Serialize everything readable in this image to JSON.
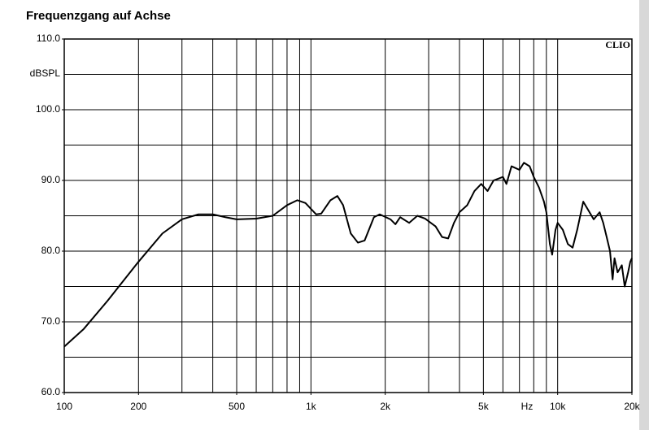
{
  "chart_data": {
    "type": "line",
    "title": "Frequenzgang auf Achse",
    "y_unit": "dBSPL",
    "x_unit": "Hz",
    "annotation": "CLIO",
    "log_x": true,
    "grid": true,
    "color": "#000000",
    "x": [
      100,
      120,
      150,
      200,
      250,
      300,
      350,
      400,
      450,
      500,
      600,
      700,
      800,
      880,
      950,
      1050,
      1100,
      1200,
      1280,
      1350,
      1450,
      1550,
      1650,
      1800,
      1900,
      2100,
      2200,
      2300,
      2500,
      2700,
      2900,
      3200,
      3400,
      3600,
      3800,
      4000,
      4300,
      4600,
      4900,
      5200,
      5500,
      6000,
      6200,
      6500,
      7000,
      7300,
      7700,
      8000,
      8400,
      8800,
      9000,
      9300,
      9500,
      9800,
      10000,
      10500,
      11000,
      11500,
      12000,
      12700,
      13200,
      14000,
      14800,
      15300,
      15800,
      16300,
      16700,
      17000,
      17500,
      18200,
      18700,
      19300,
      19700,
      20000
    ],
    "values": [
      66.5,
      69,
      73,
      78.5,
      82.5,
      84.5,
      85.2,
      85.2,
      84.8,
      84.5,
      84.6,
      85,
      86.5,
      87.2,
      86.8,
      85.2,
      85.3,
      87.2,
      87.8,
      86.5,
      82.5,
      81.2,
      81.5,
      84.8,
      85.2,
      84.5,
      83.8,
      84.8,
      84,
      85,
      84.6,
      83.5,
      82,
      81.8,
      84,
      85.5,
      86.5,
      88.5,
      89.5,
      88.5,
      90,
      90.5,
      89.5,
      92,
      91.5,
      92.5,
      92,
      90.5,
      89,
      87,
      85.5,
      81,
      79.5,
      83,
      84,
      83,
      81,
      80.5,
      83,
      87,
      86,
      84.5,
      85.5,
      84,
      82,
      80,
      76,
      79,
      77,
      78,
      75,
      77,
      78.5,
      79
    ],
    "xlim": [
      100,
      20000
    ],
    "ylim": [
      60,
      110
    ],
    "xticks": [
      100,
      200,
      500,
      {
        "value": 1000,
        "label": "1k"
      },
      {
        "value": 2000,
        "label": "2k"
      },
      {
        "value": 5000,
        "label": "5k"
      },
      {
        "value": 10000,
        "label": "10k"
      },
      {
        "value": 20000,
        "label": "20k"
      }
    ],
    "yticks": [
      {
        "value": 60,
        "label": "60.0"
      },
      {
        "value": 70,
        "label": "70.0"
      },
      {
        "value": 80,
        "label": "80.0"
      },
      {
        "value": 90,
        "label": "90.0"
      },
      {
        "value": 100,
        "label": "100.0"
      },
      {
        "value": 110,
        "label": "110.0"
      }
    ],
    "xgrid": [
      100,
      200,
      300,
      400,
      500,
      600,
      700,
      800,
      900,
      1000,
      2000,
      3000,
      4000,
      5000,
      6000,
      7000,
      8000,
      9000,
      10000,
      20000
    ],
    "ygrid": [
      60,
      65,
      70,
      75,
      80,
      85,
      90,
      95,
      100,
      105,
      110
    ]
  }
}
